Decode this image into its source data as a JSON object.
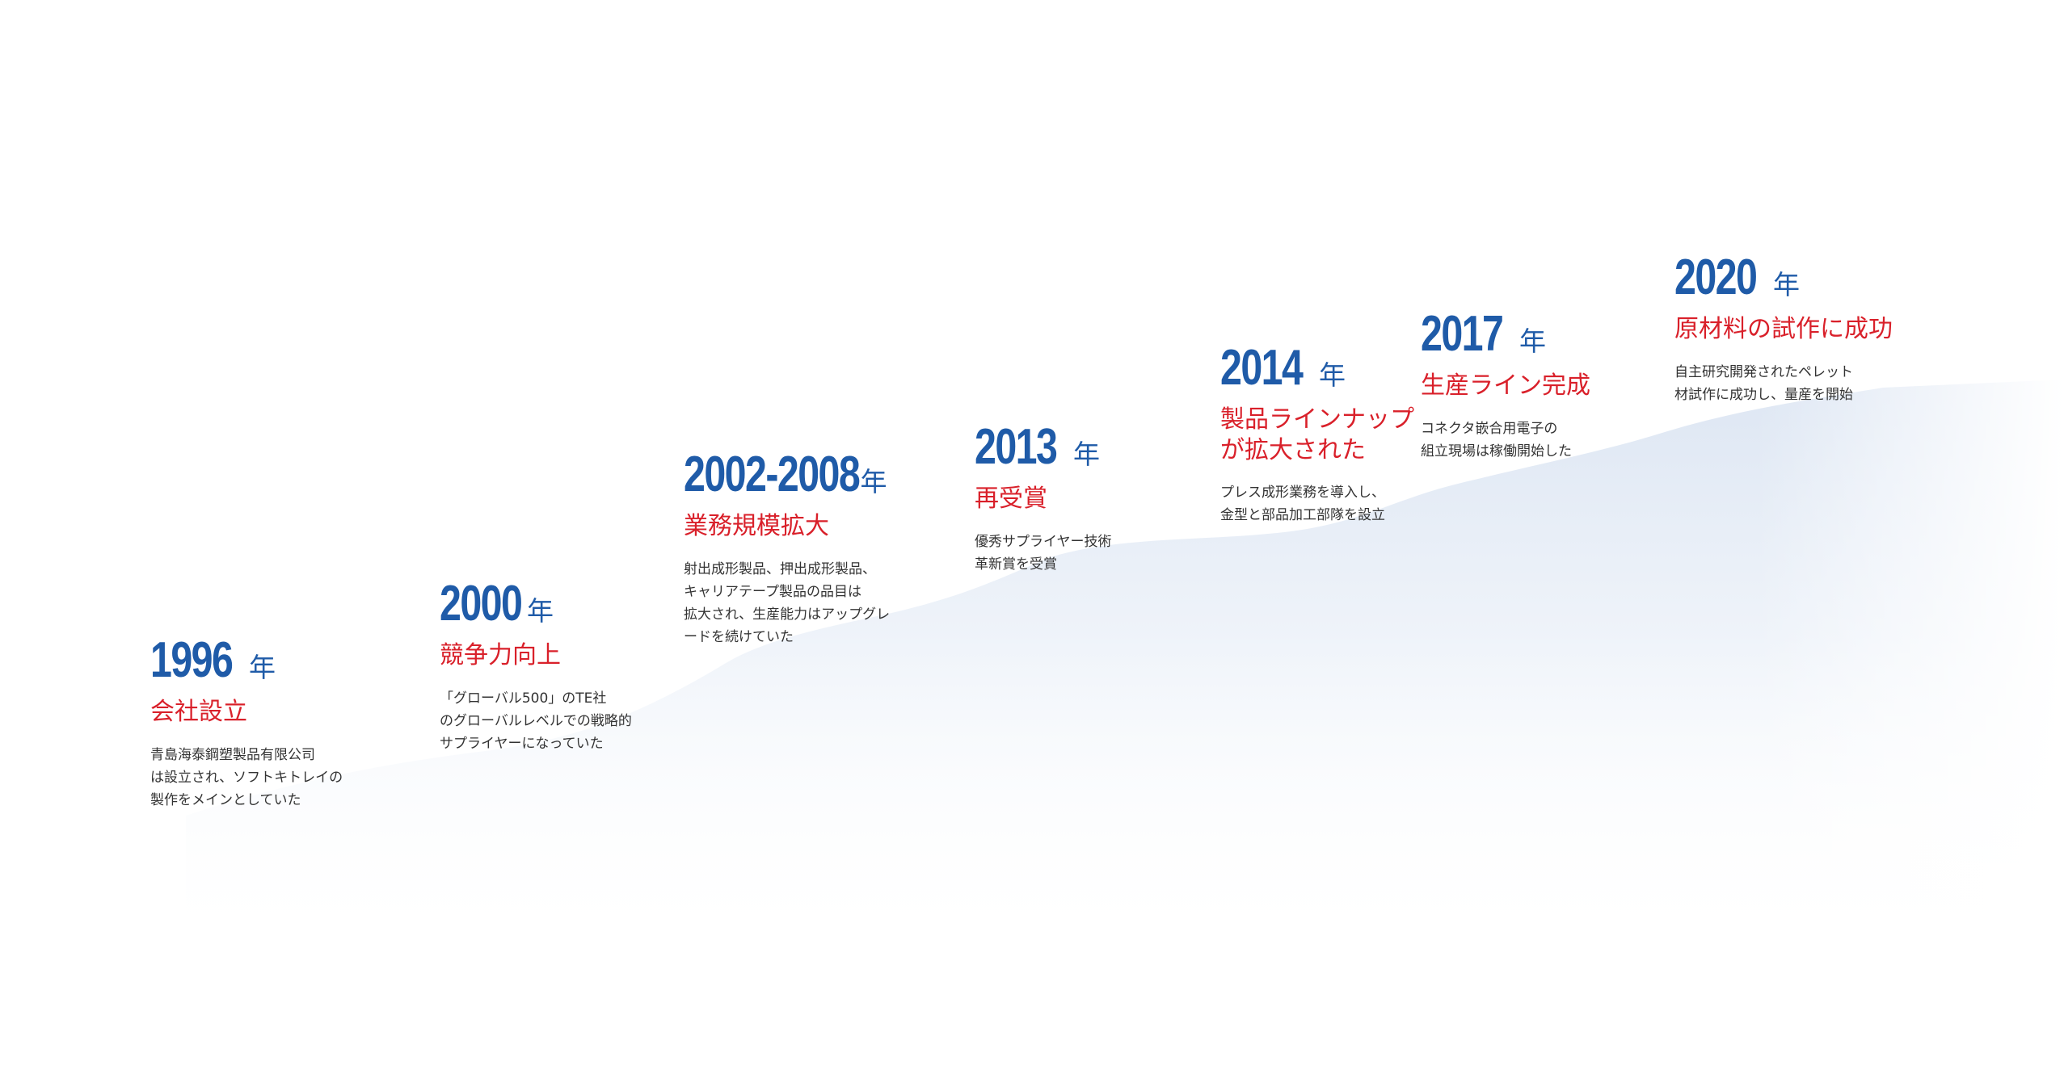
{
  "colors": {
    "year": "#1f5ba8",
    "title": "#d9202a",
    "text": "#333333",
    "stem": "#1f5ba8",
    "area": "#dfe7f4"
  },
  "events": [
    {
      "year": "1996",
      "unit": "年",
      "title": [
        "会社設立"
      ],
      "desc": [
        "青島海泰鋼塑製品有限公司",
        "は設立され、ソフトキトレイの",
        "製作をメインとしていた"
      ]
    },
    {
      "year": "2000",
      "unit": "年",
      "title": [
        "競争力向上"
      ],
      "desc": [
        "「グローバル500」のTE社",
        "のグローバルレベルでの戦略的",
        "サプライヤーになっていた"
      ]
    },
    {
      "year": "2002-2008",
      "unit": "年",
      "title": [
        "業務規模拡大"
      ],
      "desc": [
        "射出成形製品、押出成形製品、",
        "キャリアテープ製品の品目は",
        "拡大され、生産能力はアップグレ",
        "ードを続けていた"
      ]
    },
    {
      "year": "2013",
      "unit": "年",
      "title": [
        "再受賞"
      ],
      "desc": [
        "優秀サプライヤー技術",
        "革新賞を受賞"
      ]
    },
    {
      "year": "2014",
      "unit": "年",
      "title": [
        "製品ラインナップ",
        "が拡大された"
      ],
      "desc": [
        "プレス成形業務を導入し、",
        "金型と部品加工部隊を設立"
      ]
    },
    {
      "year": "2017",
      "unit": "年",
      "title": [
        "生産ライン完成"
      ],
      "desc": [
        "コネクタ嵌合用電子の",
        "組立現場は稼働開始した"
      ]
    },
    {
      "year": "2020",
      "unit": "年",
      "title": [
        "原材料の試作に成功"
      ],
      "desc": [
        "自主研究開発されたペレット",
        "材試作に成功し、量産を開始"
      ]
    }
  ]
}
